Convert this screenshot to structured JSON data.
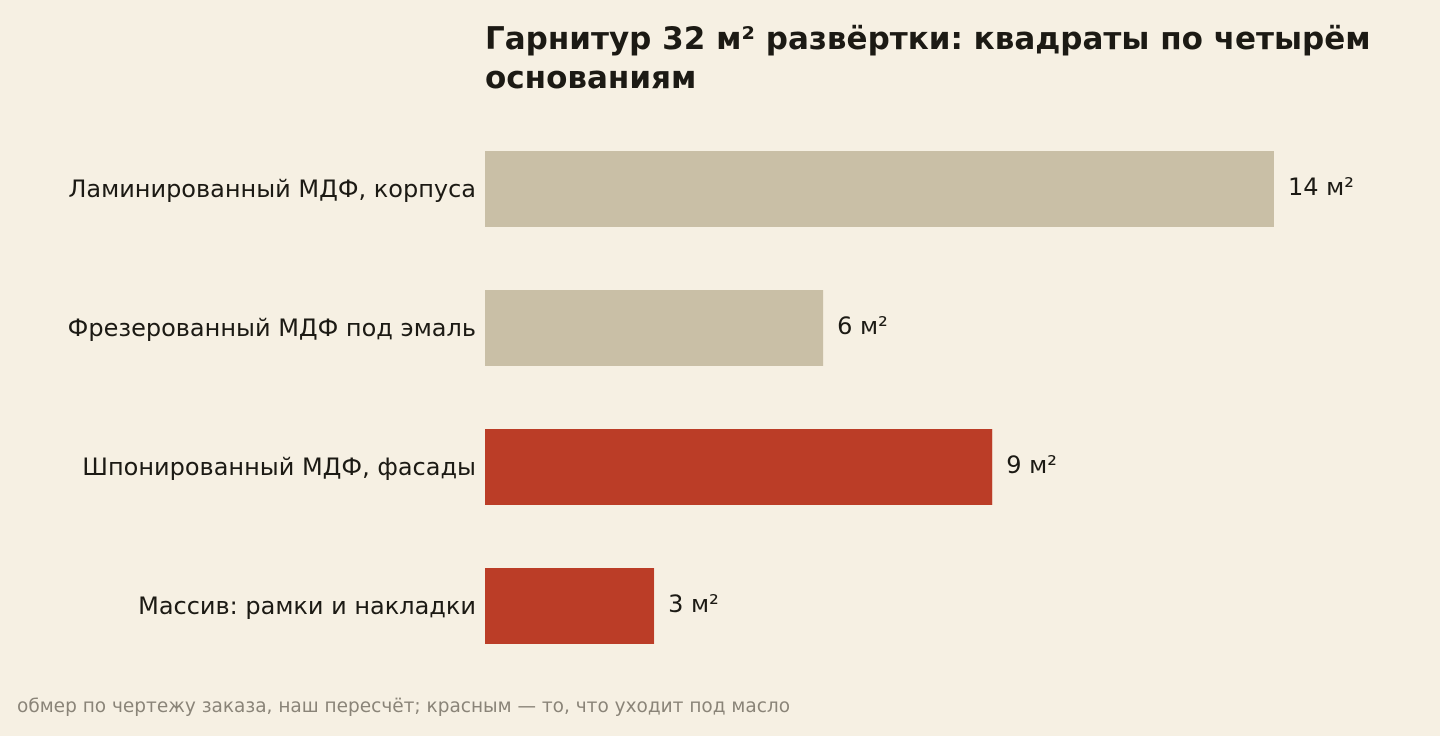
{
  "chart_data": {
    "type": "bar",
    "orientation": "horizontal",
    "title": "Гарнитур 32 м² развёртки: квадраты по четырём основаниям",
    "categories": [
      "Ламинированный МДФ, корпуса",
      "Фрезерованный МДФ под эмаль",
      "Шпонированный МДФ, фасады",
      "Массив: рамки и накладки"
    ],
    "values": [
      14,
      6,
      9,
      3
    ],
    "value_labels": [
      "14 м²",
      "6 м²",
      "9 м²",
      "3 м²"
    ],
    "highlighted": [
      false,
      false,
      true,
      true
    ],
    "unit": "м²",
    "xlim": [
      0,
      14
    ],
    "grid": false,
    "legend": "none",
    "colors": {
      "default": "#c9bfa6",
      "highlight": "#bb3d27",
      "text": "#1c1a14",
      "note": "#8a8478"
    },
    "footnote": "обмер по чертежу заказа, наш пересчёт; красным — то, что уходит под масло"
  }
}
